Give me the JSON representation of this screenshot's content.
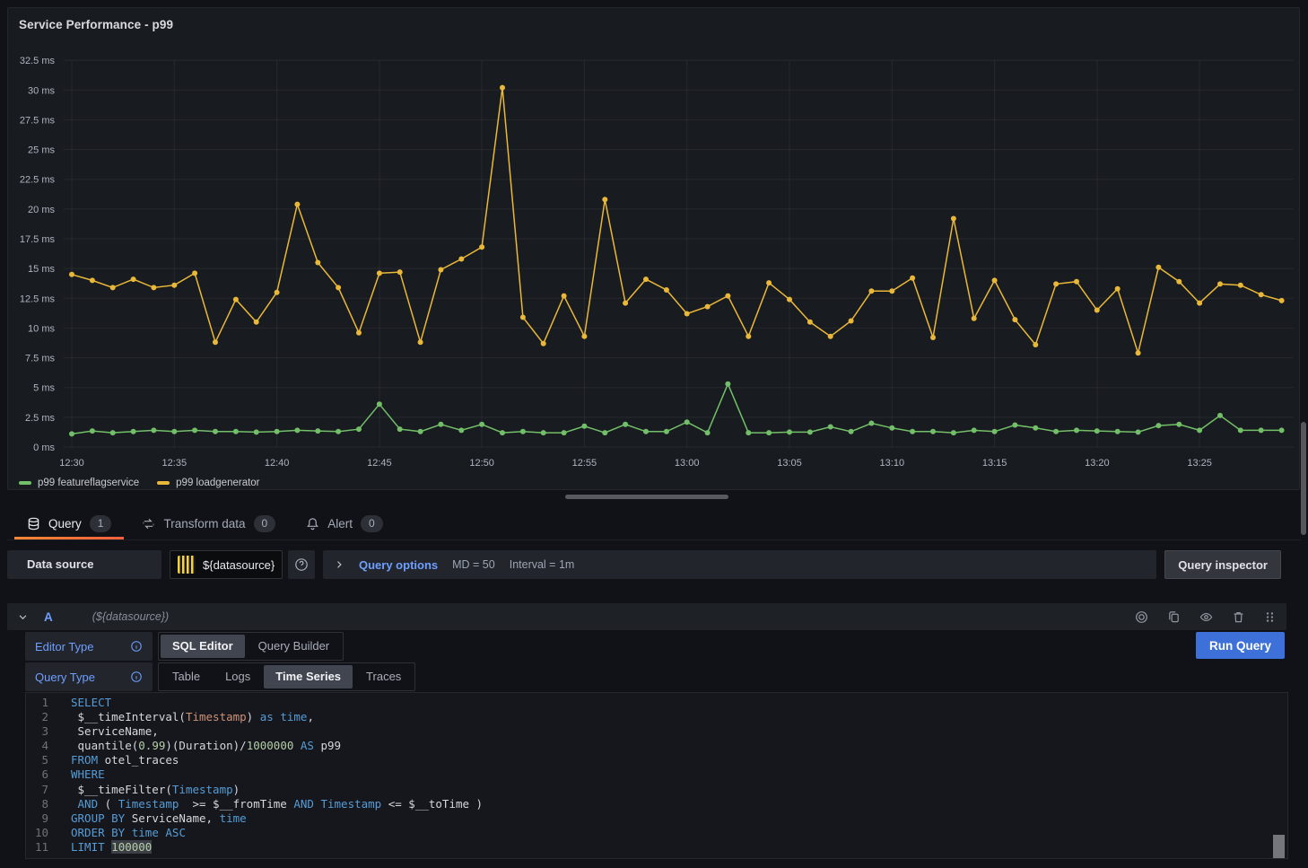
{
  "panel": {
    "title": "Service Performance - p99"
  },
  "chart_data": {
    "type": "line",
    "title": "Service Performance - p99",
    "xlabel": "",
    "ylabel": "",
    "unit": "ms",
    "grid": true,
    "legend_position": "bottom-left",
    "ylim": [
      0,
      34.2
    ],
    "x": [
      "12:30",
      "12:31",
      "12:32",
      "12:33",
      "12:34",
      "12:35",
      "12:36",
      "12:37",
      "12:38",
      "12:39",
      "12:40",
      "12:41",
      "12:42",
      "12:43",
      "12:44",
      "12:45",
      "12:46",
      "12:47",
      "12:48",
      "12:49",
      "12:50",
      "12:51",
      "12:52",
      "12:53",
      "12:54",
      "12:55",
      "12:56",
      "12:57",
      "12:58",
      "12:59",
      "13:00",
      "13:01",
      "13:02",
      "13:03",
      "13:04",
      "13:05",
      "13:06",
      "13:07",
      "13:08",
      "13:09",
      "13:10",
      "13:11",
      "13:12",
      "13:13",
      "13:14",
      "13:15",
      "13:16",
      "13:17",
      "13:18",
      "13:19",
      "13:20",
      "13:21",
      "13:22",
      "13:23",
      "13:24",
      "13:25",
      "13:26",
      "13:27",
      "13:28",
      "13:29"
    ],
    "series": [
      {
        "name": "p99 featureflagservice",
        "color": "#73BF69",
        "values": [
          1.1,
          1.35,
          1.2,
          1.3,
          1.4,
          1.3,
          1.4,
          1.3,
          1.3,
          1.25,
          1.3,
          1.4,
          1.35,
          1.3,
          1.5,
          3.6,
          1.5,
          1.3,
          1.9,
          1.4,
          1.9,
          1.2,
          1.3,
          1.2,
          1.2,
          1.75,
          1.2,
          1.9,
          1.3,
          1.3,
          2.1,
          1.2,
          5.3,
          1.2,
          1.2,
          1.25,
          1.25,
          1.7,
          1.3,
          2.0,
          1.6,
          1.3,
          1.3,
          1.2,
          1.4,
          1.3,
          1.85,
          1.6,
          1.3,
          1.4,
          1.35,
          1.3,
          1.25,
          1.8,
          1.9,
          1.4,
          2.65,
          1.4,
          1.4,
          1.4
        ]
      },
      {
        "name": "p99 loadgenerator",
        "color": "#EAB839",
        "values": [
          14.5,
          14.0,
          13.4,
          14.1,
          13.4,
          13.6,
          14.6,
          8.8,
          12.4,
          10.5,
          13.0,
          20.4,
          15.5,
          13.4,
          9.6,
          14.6,
          14.7,
          8.8,
          14.9,
          15.8,
          16.8,
          30.2,
          10.9,
          8.7,
          12.7,
          9.3,
          20.8,
          12.1,
          14.1,
          13.2,
          11.2,
          11.8,
          12.7,
          9.3,
          13.8,
          12.4,
          10.5,
          9.3,
          10.6,
          13.1,
          13.1,
          14.2,
          9.2,
          19.2,
          10.8,
          14.0,
          10.7,
          8.6,
          13.7,
          13.9,
          11.5,
          13.3,
          7.9,
          15.1,
          13.9,
          12.1,
          13.7,
          13.6,
          12.8,
          12.3
        ]
      }
    ],
    "yticks": [
      0,
      2.5,
      5,
      7.5,
      10,
      12.5,
      15,
      17.5,
      20,
      22.5,
      25,
      27.5,
      30,
      32.5
    ],
    "ytick_labels": [
      "0 ms",
      "2.5 ms",
      "5 ms",
      "7.5 ms",
      "10 ms",
      "12.5 ms",
      "15 ms",
      "17.5 ms",
      "20 ms",
      "22.5 ms",
      "25 ms",
      "27.5 ms",
      "30 ms",
      "32.5 ms"
    ],
    "xticks": [
      "12:30",
      "12:35",
      "12:40",
      "12:45",
      "12:50",
      "12:55",
      "13:00",
      "13:05",
      "13:10",
      "13:15",
      "13:20",
      "13:25"
    ]
  },
  "tabs": {
    "query": {
      "label": "Query",
      "count": "1"
    },
    "transform": {
      "label": "Transform data",
      "count": "0"
    },
    "alert": {
      "label": "Alert",
      "count": "0"
    }
  },
  "toolbar": {
    "datasource_label": "Data source",
    "datasource_value": "${datasource}",
    "query_options_label": "Query options",
    "md": "MD = 50",
    "interval": "Interval = 1m",
    "query_inspector_label": "Query inspector"
  },
  "query_row": {
    "ref_id": "A",
    "datasource_hint": "(${datasource})",
    "run_button": "Run Query",
    "editor_type": {
      "label": "Editor Type",
      "options": [
        "SQL Editor",
        "Query Builder"
      ],
      "selected": "SQL Editor"
    },
    "query_type": {
      "label": "Query Type",
      "options": [
        "Table",
        "Logs",
        "Time Series",
        "Traces"
      ],
      "selected": "Time Series"
    }
  },
  "editor": {
    "language": "sql",
    "lines": [
      [
        {
          "t": "SELECT",
          "c": "kw"
        }
      ],
      [
        {
          "t": " $__timeInterval(",
          "c": "def"
        },
        {
          "t": "Timestamp",
          "c": "str"
        },
        {
          "t": ") ",
          "c": "def"
        },
        {
          "t": "as",
          "c": "kw"
        },
        {
          "t": " ",
          "c": "def"
        },
        {
          "t": "time",
          "c": "kw"
        },
        {
          "t": ",",
          "c": "def"
        }
      ],
      [
        {
          "t": " ServiceName,",
          "c": "def"
        }
      ],
      [
        {
          "t": " quantile(",
          "c": "def"
        },
        {
          "t": "0.99",
          "c": "num"
        },
        {
          "t": ")(Duration)/",
          "c": "def"
        },
        {
          "t": "1000000",
          "c": "num"
        },
        {
          "t": " ",
          "c": "def"
        },
        {
          "t": "AS",
          "c": "kw"
        },
        {
          "t": " p99",
          "c": "def"
        }
      ],
      [
        {
          "t": "FROM",
          "c": "kw"
        },
        {
          "t": " otel_traces",
          "c": "def"
        }
      ],
      [
        {
          "t": "WHERE",
          "c": "kw"
        }
      ],
      [
        {
          "t": " $__timeFilter(",
          "c": "def"
        },
        {
          "t": "Timestamp",
          "c": "kw"
        },
        {
          "t": ")",
          "c": "def"
        }
      ],
      [
        {
          "t": " ",
          "c": "def"
        },
        {
          "t": "AND",
          "c": "kw"
        },
        {
          "t": " ( ",
          "c": "def"
        },
        {
          "t": "Timestamp",
          "c": "kw"
        },
        {
          "t": "  >= $__fromTime ",
          "c": "def"
        },
        {
          "t": "AND",
          "c": "kw"
        },
        {
          "t": " ",
          "c": "def"
        },
        {
          "t": "Timestamp",
          "c": "kw"
        },
        {
          "t": " <= $__toTime )",
          "c": "def"
        }
      ],
      [
        {
          "t": "GROUP BY",
          "c": "kw"
        },
        {
          "t": " ServiceName, ",
          "c": "def"
        },
        {
          "t": "time",
          "c": "kw"
        }
      ],
      [
        {
          "t": "ORDER BY",
          "c": "kw"
        },
        {
          "t": " ",
          "c": "def"
        },
        {
          "t": "time",
          "c": "kw"
        },
        {
          "t": " ",
          "c": "def"
        },
        {
          "t": "ASC",
          "c": "kw"
        }
      ],
      [
        {
          "t": "LIMIT",
          "c": "kw"
        },
        {
          "t": " ",
          "c": "def"
        },
        {
          "t": "100000",
          "c": "num",
          "hl": true
        }
      ]
    ]
  }
}
